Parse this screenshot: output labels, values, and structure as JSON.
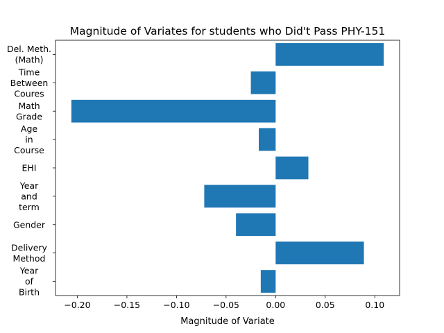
{
  "chart_data": {
    "type": "bar",
    "orientation": "horizontal",
    "title": "Magnitude of Variates for students who Did't Pass PHY-151",
    "xlabel": "Magnitude of Variate",
    "ylabel": "",
    "categories": [
      "Year\nof\nBirth",
      "Delivery\nMethod",
      "Gender",
      "Year\nand\nterm",
      "EHI",
      "Age\nin\nCourse",
      "Math\nGrade",
      "Time\nBetween\nCoures",
      "Del. Meth.\n(Math)"
    ],
    "values": [
      -0.015,
      0.089,
      -0.04,
      -0.072,
      0.033,
      -0.017,
      -0.206,
      -0.025,
      0.109
    ],
    "xlim": [
      -0.222,
      0.125
    ],
    "xticks": [
      -0.2,
      -0.15,
      -0.1,
      -0.05,
      0.0,
      0.05,
      0.1
    ],
    "xtick_labels": [
      "−0.20",
      "−0.15",
      "−0.10",
      "−0.05",
      "0.00",
      "0.05",
      "0.10"
    ],
    "bar_color": "#1f77b4",
    "grid": false,
    "legend": "none"
  }
}
